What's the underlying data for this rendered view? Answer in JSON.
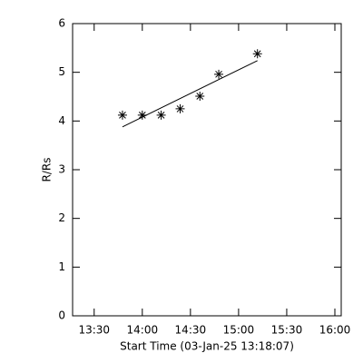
{
  "chart_data": {
    "type": "scatter",
    "x_label": "Start Time (03-Jan-25 13:18:07)",
    "y_label": "R/Rs",
    "x": [
      13.794,
      14.0,
      14.196,
      14.393,
      14.598,
      14.794,
      15.196
    ],
    "values": [
      4.12,
      4.12,
      4.12,
      4.25,
      4.51,
      4.96,
      5.38
    ],
    "color": "#000000",
    "fit": {
      "x": [
        13.794,
        15.196
      ],
      "values": [
        3.88,
        5.24
      ]
    },
    "xlim": [
      13.276,
      16.066
    ],
    "ylim": [
      0,
      6
    ],
    "xticks": [
      {
        "value": 13.5,
        "label": "13:30"
      },
      {
        "value": 14.0,
        "label": "14:00"
      },
      {
        "value": 14.5,
        "label": "14:30"
      },
      {
        "value": 15.0,
        "label": "15:00"
      },
      {
        "value": 15.5,
        "label": "15:30"
      },
      {
        "value": 16.0,
        "label": "16:00"
      }
    ],
    "yticks": [
      0,
      1,
      2,
      3,
      4,
      5,
      6
    ]
  }
}
